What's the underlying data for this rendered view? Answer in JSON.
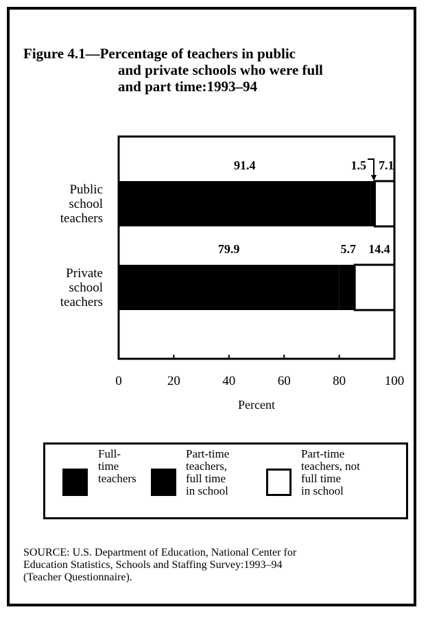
{
  "figure": {
    "number": "Figure 4.1—",
    "title_lines": [
      "Percentage of teachers in public",
      "and private schools who were full",
      "and part time:1993–94"
    ]
  },
  "chart_data": {
    "type": "bar",
    "stacked": true,
    "orientation": "horizontal",
    "categories": [
      "Public school teachers",
      "Private school teachers"
    ],
    "category_label_lines": [
      [
        "Public",
        "school",
        "teachers"
      ],
      [
        "Private",
        "school",
        "teachers"
      ]
    ],
    "series": [
      {
        "name": "Full-time teachers",
        "values": [
          91.4,
          79.9
        ],
        "color": "#000000"
      },
      {
        "name": "Part-time teachers, full time in school",
        "values": [
          1.5,
          5.7
        ],
        "color": "#000000"
      },
      {
        "name": "Part-time teachers, not full time in school",
        "values": [
          7.1,
          14.4
        ],
        "color": "#ffffff"
      }
    ],
    "data_labels": [
      [
        "91.4",
        "1.5",
        "7.1"
      ],
      [
        "79.9",
        "5.7",
        "14.4"
      ]
    ],
    "xlabel": "Percent",
    "xlim": [
      0,
      100
    ],
    "xticks": [
      0,
      20,
      40,
      60,
      80,
      100
    ],
    "xtick_labels": [
      "0",
      "20",
      "40",
      "60",
      "80",
      "100"
    ],
    "legend_position": "bottom"
  },
  "legend": {
    "items": [
      {
        "lines": [
          "Full-",
          "time",
          "teachers"
        ],
        "color": "#000000"
      },
      {
        "lines": [
          "Part-time",
          "teachers,",
          "full time",
          "in school"
        ],
        "color": "#000000"
      },
      {
        "lines": [
          "Part-time",
          "teachers, not",
          "full time",
          "in school"
        ],
        "color": "#ffffff"
      }
    ]
  },
  "source": {
    "lines": [
      "SOURCE: U.S. Department of Education, National Center for",
      "Education Statistics, Schools and Staffing Survey:1993–94",
      "(Teacher Questionnaire)."
    ]
  }
}
